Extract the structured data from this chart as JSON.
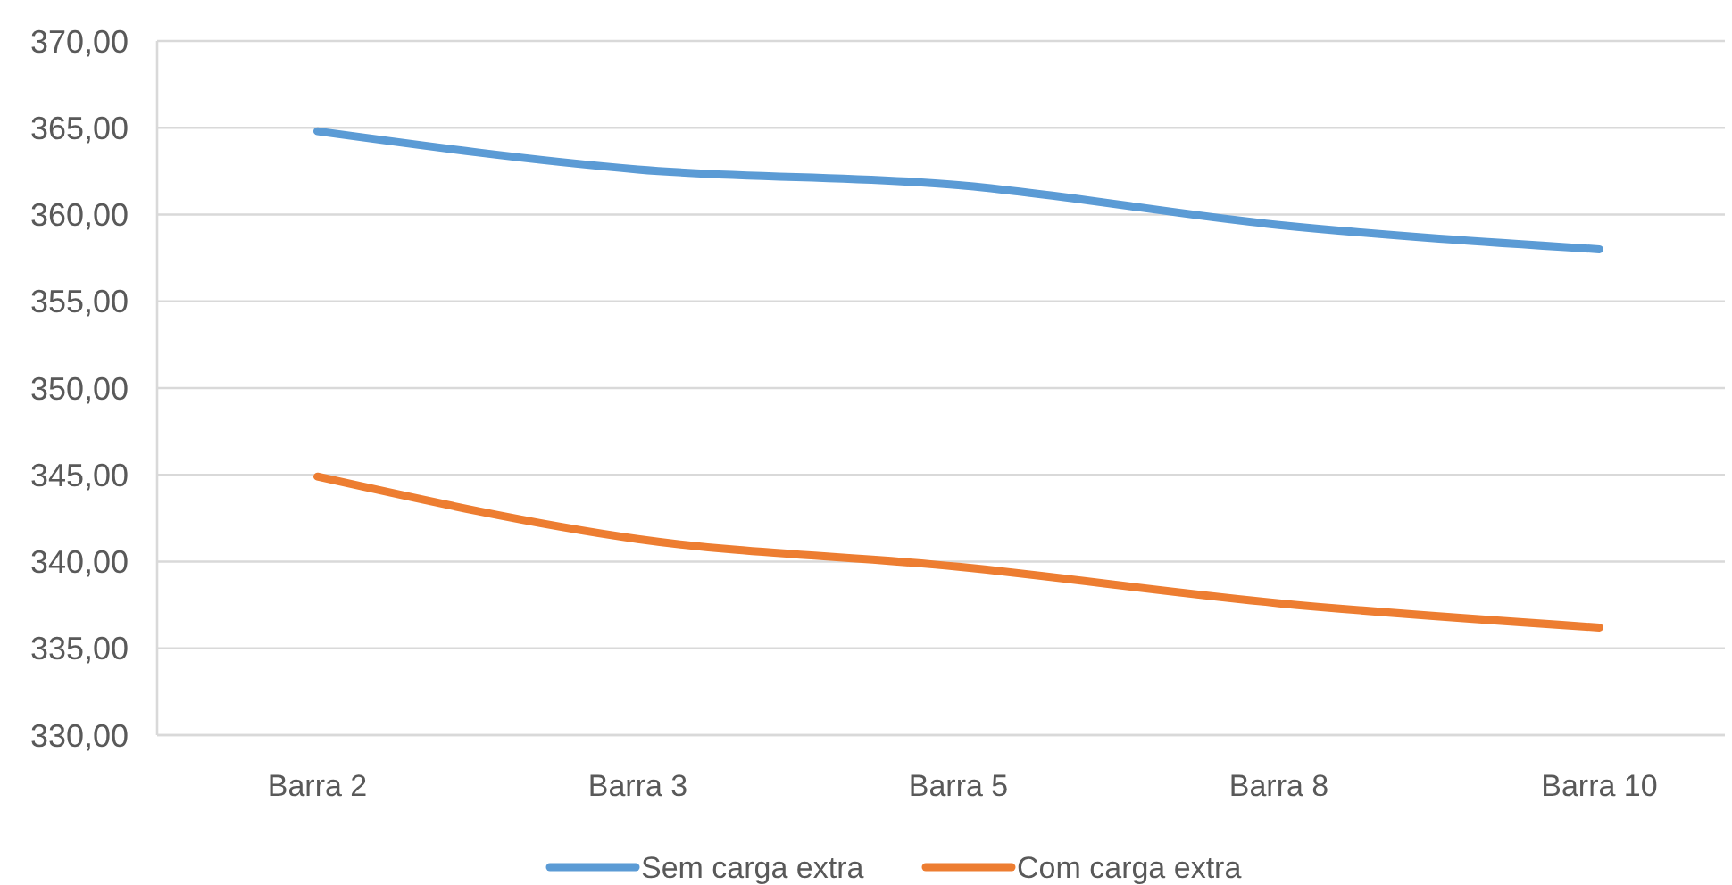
{
  "chart_data": {
    "type": "line",
    "categories": [
      "Barra 2",
      "Barra 3",
      "Barra 5",
      "Barra 8",
      "Barra 10"
    ],
    "series": [
      {
        "name": "Sem carga extra",
        "color": "#5b9bd5",
        "values": [
          364.8,
          362.6,
          361.7,
          359.4,
          358.0
        ]
      },
      {
        "name": "Com carga extra",
        "color": "#ed7d31",
        "values": [
          344.9,
          341.3,
          339.7,
          337.6,
          336.2
        ]
      }
    ],
    "ylim": [
      330,
      370
    ],
    "yticks": [
      {
        "value": 330,
        "label": "330,00"
      },
      {
        "value": 335,
        "label": "335,00"
      },
      {
        "value": 340,
        "label": "340,00"
      },
      {
        "value": 345,
        "label": "345,00"
      },
      {
        "value": 350,
        "label": "350,00"
      },
      {
        "value": 355,
        "label": "355,00"
      },
      {
        "value": 360,
        "label": "360,00"
      },
      {
        "value": 365,
        "label": "365,00"
      },
      {
        "value": 370,
        "label": "370,00"
      }
    ],
    "grid": "y",
    "legend": "bottom",
    "line_style": "solid"
  }
}
